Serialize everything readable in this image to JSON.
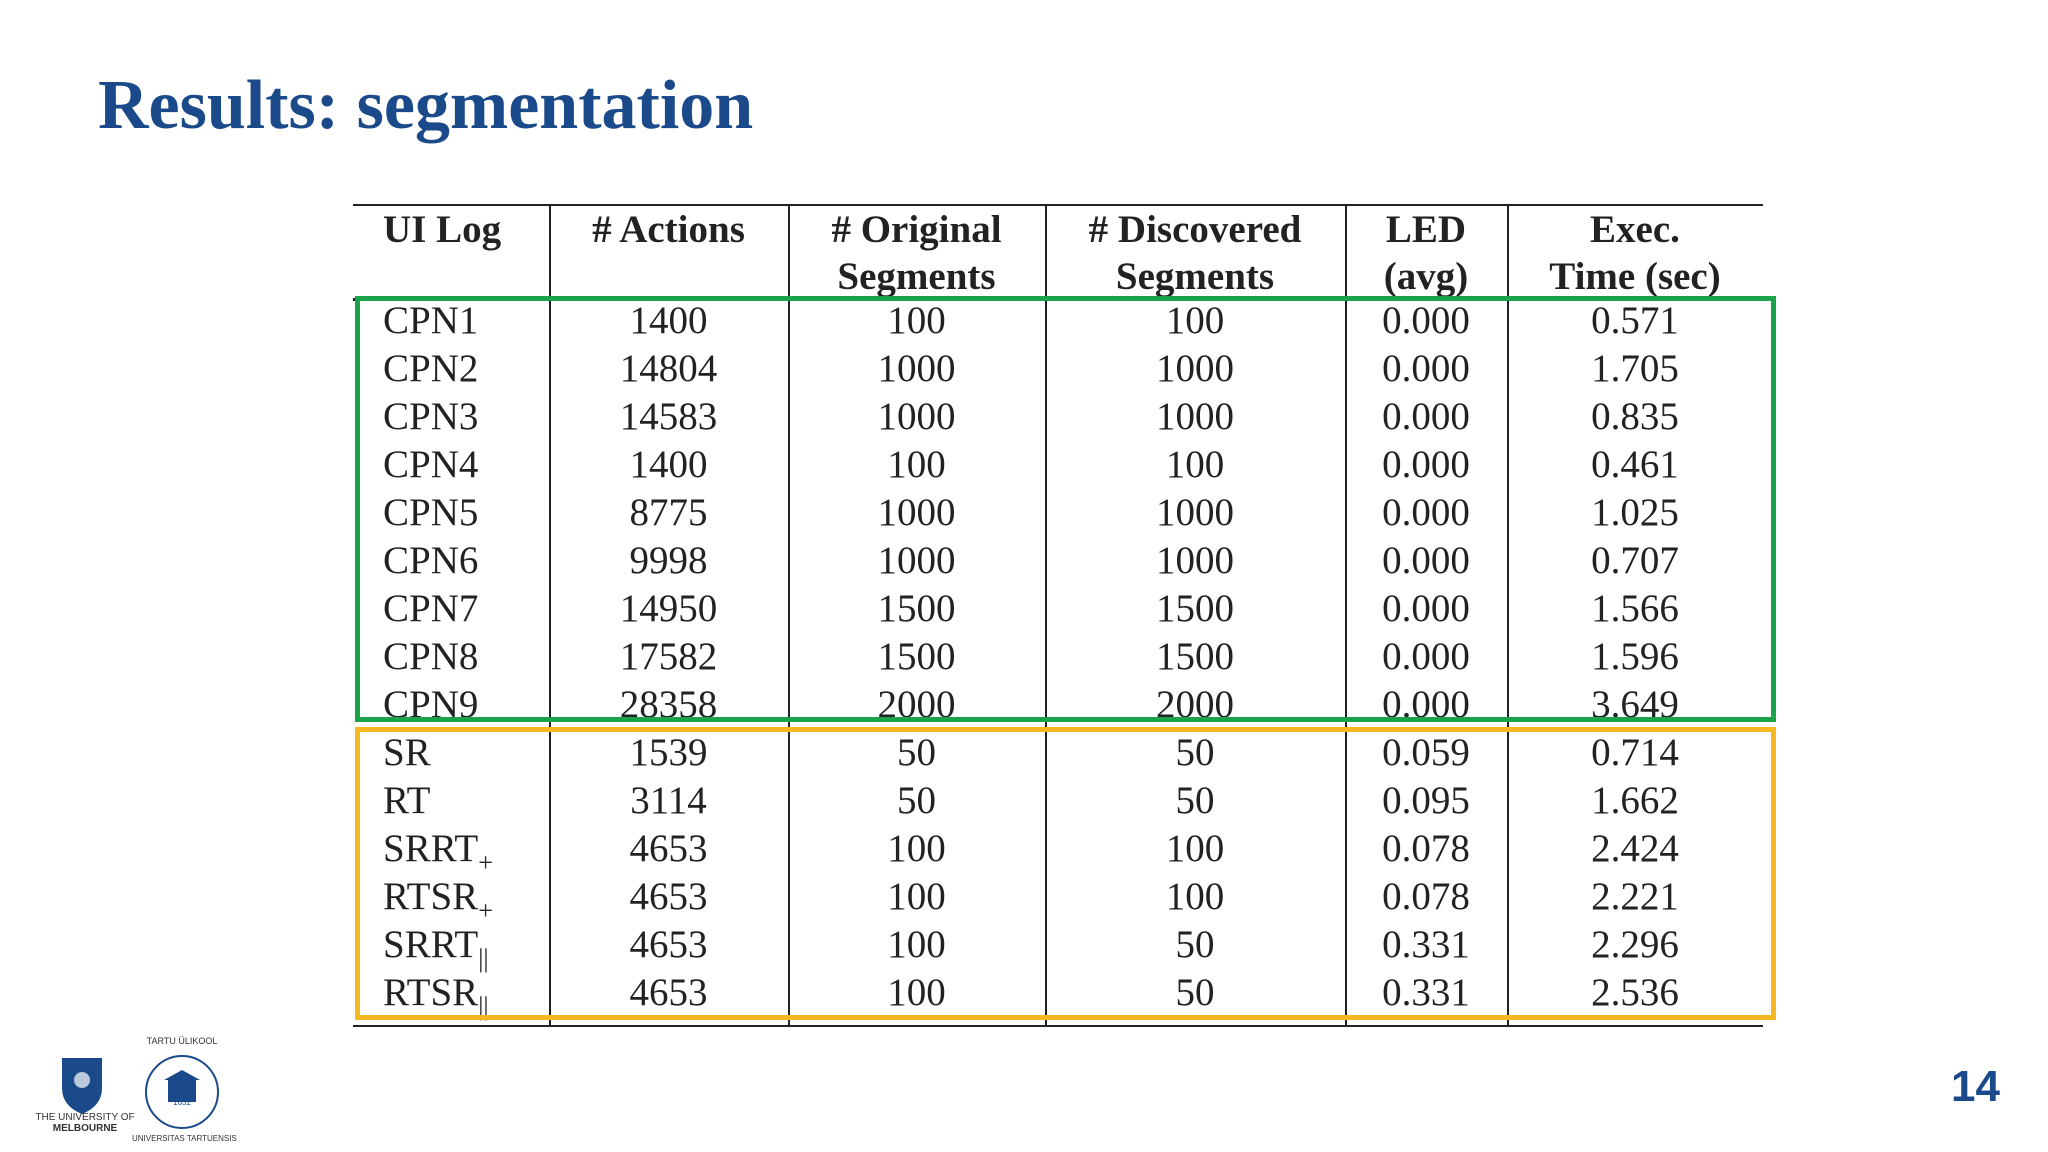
{
  "header": {
    "title": "Results: segmentation"
  },
  "table": {
    "header": [
      [
        "UI Log"
      ],
      [
        "# Actions"
      ],
      [
        "# Original",
        "Segments"
      ],
      [
        "# Discovered",
        "Segments"
      ],
      [
        "LED",
        "(avg)"
      ],
      [
        "Exec.",
        "Time (sec)"
      ]
    ],
    "rows": [
      [
        "CPN1",
        "1400",
        "100",
        "100",
        "0.000",
        "0.571"
      ],
      [
        "CPN2",
        "14804",
        "1000",
        "1000",
        "0.000",
        "1.705"
      ],
      [
        "CPN3",
        "14583",
        "1000",
        "1000",
        "0.000",
        "0.835"
      ],
      [
        "CPN4",
        "1400",
        "100",
        "100",
        "0.000",
        "0.461"
      ],
      [
        "CPN5",
        "8775",
        "1000",
        "1000",
        "0.000",
        "1.025"
      ],
      [
        "CPN6",
        "9998",
        "1000",
        "1000",
        "0.000",
        "0.707"
      ],
      [
        "CPN7",
        "14950",
        "1500",
        "1500",
        "0.000",
        "1.566"
      ],
      [
        "CPN8",
        "17582",
        "1500",
        "1500",
        "0.000",
        "1.596"
      ],
      [
        "CPN9",
        "28358",
        "2000",
        "2000",
        "0.000",
        "3.649"
      ],
      [
        "SR",
        "1539",
        "50",
        "50",
        "0.059",
        "0.714"
      ],
      [
        "RT",
        "3114",
        "50",
        "50",
        "0.095",
        "1.662"
      ],
      [
        {
          "text": "SRRT",
          "sub": "+"
        },
        "4653",
        "100",
        "100",
        "0.078",
        "2.424"
      ],
      [
        {
          "text": "RTSR",
          "sub": "+"
        },
        "4653",
        "100",
        "100",
        "0.078",
        "2.221"
      ],
      [
        {
          "text": "SRRT",
          "sub": "||"
        },
        "4653",
        "100",
        "50",
        "0.331",
        "2.296"
      ],
      [
        {
          "text": "RTSR",
          "sub": "||"
        },
        "4653",
        "100",
        "50",
        "0.331",
        "2.536"
      ]
    ]
  },
  "logos": {
    "melbourne": [
      "THE UNIVERSITY OF",
      "MELBOURNE"
    ],
    "tartu": [
      "TARTU ÜLIKOOL",
      "1632",
      "UNIVERSITAS TARTUENSIS"
    ]
  },
  "footer": {
    "page_number": "14"
  }
}
